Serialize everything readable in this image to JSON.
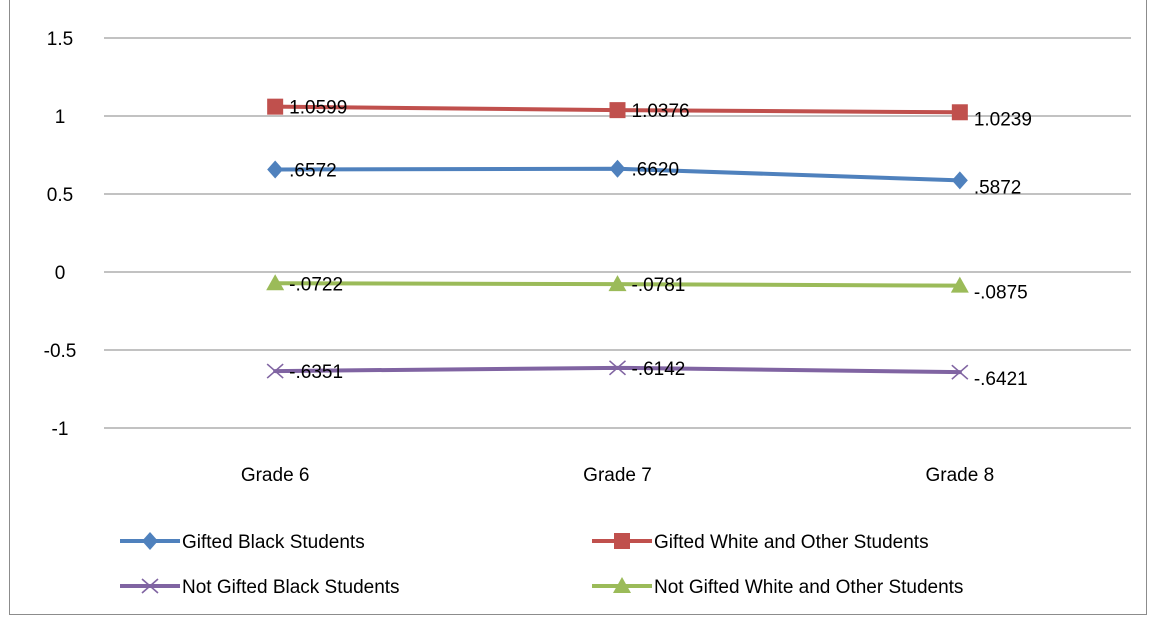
{
  "chart_data": {
    "type": "line",
    "title": "",
    "xlabel": "",
    "ylabel": "",
    "categories": [
      "Grade 6",
      "Grade 7",
      "Grade 8"
    ],
    "ylim": [
      -1,
      1.5
    ],
    "yticks": [
      "1.5",
      "1",
      "0.5",
      "0",
      "-0.5",
      "-1"
    ],
    "ytick_values": [
      1.5,
      1,
      0.5,
      0,
      -0.5,
      -1
    ],
    "grid": true,
    "legend_position": "bottom",
    "series": [
      {
        "name": "Gifted Black Students",
        "values": [
          0.6572,
          0.662,
          0.5872
        ],
        "labels": [
          ".6572",
          ".6620",
          ".5872"
        ],
        "color": "#4F81BD",
        "marker": "diamond"
      },
      {
        "name": "Gifted White and Other Students",
        "values": [
          1.0599,
          1.0376,
          1.0239
        ],
        "labels": [
          "1.0599",
          "1.0376",
          "1.0239"
        ],
        "color": "#C0504D",
        "marker": "square"
      },
      {
        "name": "Not Gifted Black Students",
        "values": [
          -0.6351,
          -0.6142,
          -0.6421
        ],
        "labels": [
          "-.6351",
          "-.6142",
          "-.6421"
        ],
        "color": "#8064A2",
        "marker": "x"
      },
      {
        "name": "Not Gifted White and Other Students",
        "values": [
          -0.0722,
          -0.0781,
          -0.0875
        ],
        "labels": [
          "-.0722",
          "-.0781",
          "-.0875"
        ],
        "color": "#9BBB59",
        "marker": "triangle"
      }
    ]
  }
}
